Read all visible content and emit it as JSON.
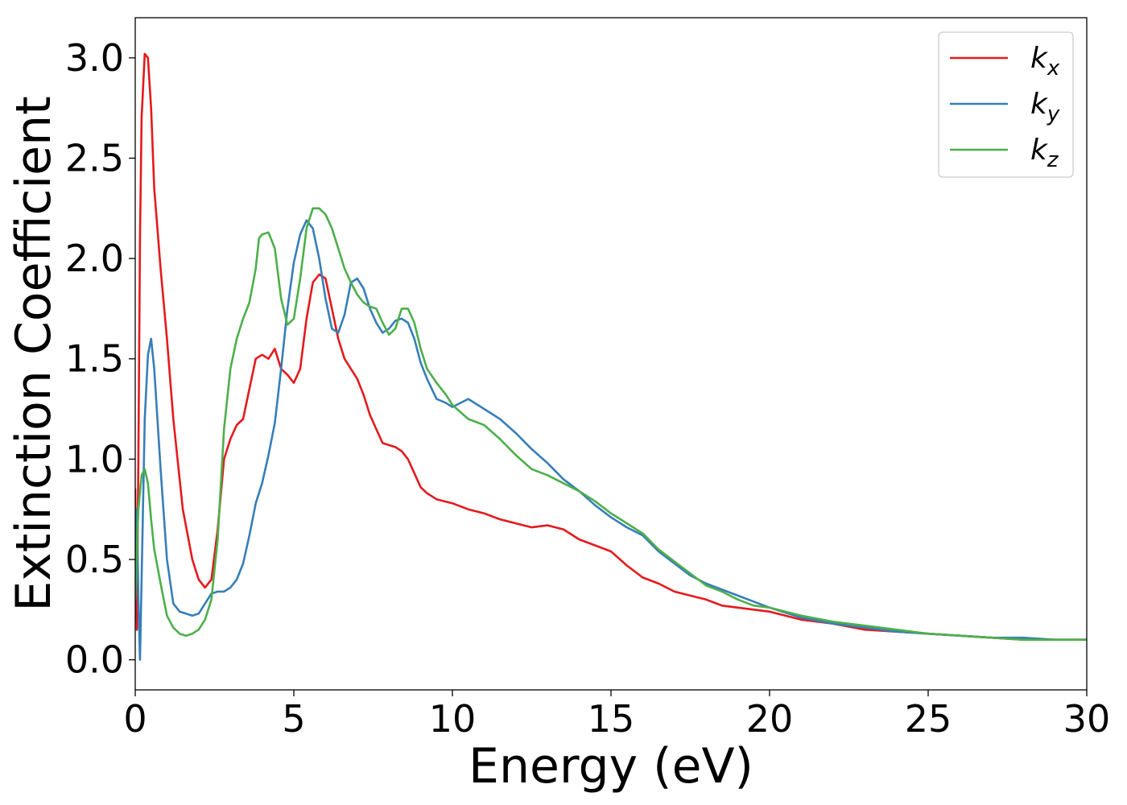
{
  "chart_data": {
    "type": "line",
    "title": "",
    "xlabel": "Energy (eV)",
    "ylabel": "Extinction Coefficient",
    "xlim": [
      0,
      30
    ],
    "ylim": [
      -0.15,
      3.2
    ],
    "xticks": [
      0,
      5,
      10,
      15,
      20,
      25,
      30
    ],
    "yticks": [
      0.0,
      0.5,
      1.0,
      1.5,
      2.0,
      2.5,
      3.0
    ],
    "xtick_labels": [
      "0",
      "5",
      "10",
      "15",
      "20",
      "25",
      "30"
    ],
    "ytick_labels": [
      "0.0",
      "0.5",
      "1.0",
      "1.5",
      "2.0",
      "2.5",
      "3.0"
    ],
    "grid": false,
    "legend_position": "top-right",
    "series": [
      {
        "name": "k",
        "subscript": "x",
        "color": "#e41a1c",
        "x": [
          0.0,
          0.05,
          0.1,
          0.15,
          0.2,
          0.3,
          0.4,
          0.5,
          0.6,
          0.8,
          1.0,
          1.2,
          1.5,
          1.8,
          2.0,
          2.2,
          2.4,
          2.6,
          2.8,
          3.0,
          3.2,
          3.4,
          3.6,
          3.8,
          4.0,
          4.2,
          4.4,
          4.6,
          4.8,
          5.0,
          5.2,
          5.4,
          5.6,
          5.8,
          6.0,
          6.2,
          6.4,
          6.6,
          6.8,
          7.0,
          7.2,
          7.4,
          7.6,
          7.8,
          8.0,
          8.2,
          8.4,
          8.6,
          8.8,
          9.0,
          9.2,
          9.5,
          10.0,
          10.5,
          11.0,
          11.5,
          12.0,
          12.5,
          13.0,
          13.5,
          14.0,
          14.5,
          15.0,
          15.5,
          16.0,
          16.5,
          17.0,
          17.5,
          18.0,
          18.5,
          19.0,
          19.5,
          20.0,
          21.0,
          22.0,
          23.0,
          24.0,
          25.0,
          26.0,
          27.0,
          28.0,
          29.0,
          30.0
        ],
        "values": [
          0.85,
          0.15,
          1.0,
          2.1,
          2.7,
          3.02,
          3.0,
          2.75,
          2.35,
          1.95,
          1.6,
          1.2,
          0.75,
          0.5,
          0.4,
          0.36,
          0.4,
          0.65,
          1.0,
          1.1,
          1.17,
          1.2,
          1.35,
          1.5,
          1.52,
          1.5,
          1.55,
          1.45,
          1.42,
          1.38,
          1.45,
          1.7,
          1.88,
          1.92,
          1.9,
          1.75,
          1.6,
          1.5,
          1.45,
          1.4,
          1.32,
          1.22,
          1.15,
          1.08,
          1.07,
          1.06,
          1.04,
          1.0,
          0.93,
          0.86,
          0.83,
          0.8,
          0.78,
          0.75,
          0.73,
          0.7,
          0.68,
          0.66,
          0.67,
          0.65,
          0.6,
          0.57,
          0.54,
          0.47,
          0.41,
          0.38,
          0.34,
          0.32,
          0.3,
          0.27,
          0.26,
          0.25,
          0.24,
          0.2,
          0.18,
          0.15,
          0.14,
          0.13,
          0.12,
          0.11,
          0.1,
          0.1,
          0.1
        ]
      },
      {
        "name": "k",
        "subscript": "y",
        "color": "#377eb8",
        "x": [
          0.0,
          0.05,
          0.1,
          0.15,
          0.2,
          0.3,
          0.4,
          0.5,
          0.6,
          0.8,
          1.0,
          1.2,
          1.4,
          1.6,
          1.8,
          2.0,
          2.2,
          2.4,
          2.6,
          2.8,
          3.0,
          3.2,
          3.4,
          3.6,
          3.8,
          4.0,
          4.2,
          4.4,
          4.6,
          4.8,
          5.0,
          5.2,
          5.4,
          5.6,
          5.8,
          6.0,
          6.2,
          6.4,
          6.6,
          6.8,
          7.0,
          7.2,
          7.4,
          7.6,
          7.8,
          8.0,
          8.2,
          8.4,
          8.6,
          8.8,
          9.0,
          9.2,
          9.5,
          9.8,
          10.0,
          10.5,
          11.0,
          11.5,
          12.0,
          12.5,
          13.0,
          13.5,
          14.0,
          14.5,
          15.0,
          15.5,
          16.0,
          16.5,
          17.0,
          17.5,
          18.0,
          18.5,
          19.0,
          19.5,
          20.0,
          21.0,
          22.0,
          23.0,
          24.0,
          25.0,
          26.0,
          27.0,
          28.0,
          29.0,
          30.0
        ],
        "values": [
          0.5,
          0.75,
          0.3,
          0.0,
          0.4,
          1.2,
          1.52,
          1.6,
          1.45,
          0.95,
          0.5,
          0.28,
          0.24,
          0.23,
          0.22,
          0.23,
          0.28,
          0.33,
          0.34,
          0.34,
          0.36,
          0.4,
          0.48,
          0.62,
          0.78,
          0.88,
          1.02,
          1.18,
          1.45,
          1.75,
          1.98,
          2.12,
          2.19,
          2.15,
          2.0,
          1.8,
          1.65,
          1.63,
          1.72,
          1.88,
          1.9,
          1.85,
          1.75,
          1.68,
          1.63,
          1.65,
          1.69,
          1.7,
          1.68,
          1.6,
          1.48,
          1.4,
          1.3,
          1.28,
          1.26,
          1.3,
          1.25,
          1.2,
          1.13,
          1.05,
          0.98,
          0.9,
          0.84,
          0.77,
          0.71,
          0.66,
          0.62,
          0.54,
          0.48,
          0.42,
          0.38,
          0.35,
          0.32,
          0.29,
          0.26,
          0.21,
          0.18,
          0.16,
          0.14,
          0.13,
          0.12,
          0.11,
          0.11,
          0.1,
          0.1
        ]
      },
      {
        "name": "k",
        "subscript": "z",
        "color": "#4daf4a",
        "x": [
          0.0,
          0.05,
          0.1,
          0.2,
          0.3,
          0.4,
          0.5,
          0.6,
          0.8,
          1.0,
          1.2,
          1.4,
          1.6,
          1.8,
          2.0,
          2.2,
          2.4,
          2.6,
          2.8,
          3.0,
          3.2,
          3.4,
          3.6,
          3.8,
          3.9,
          4.0,
          4.2,
          4.4,
          4.6,
          4.8,
          5.0,
          5.2,
          5.4,
          5.6,
          5.8,
          6.0,
          6.2,
          6.4,
          6.6,
          6.8,
          7.0,
          7.2,
          7.4,
          7.6,
          7.8,
          8.0,
          8.2,
          8.4,
          8.6,
          8.8,
          9.0,
          9.2,
          9.5,
          9.8,
          10.0,
          10.5,
          11.0,
          11.5,
          12.0,
          12.5,
          13.0,
          13.5,
          14.0,
          14.5,
          15.0,
          15.5,
          16.0,
          16.5,
          17.0,
          17.5,
          18.0,
          18.5,
          19.0,
          19.5,
          20.0,
          21.0,
          22.0,
          23.0,
          24.0,
          25.0,
          26.0,
          27.0,
          28.0,
          29.0,
          30.0
        ],
        "values": [
          0.3,
          0.55,
          0.75,
          0.92,
          0.95,
          0.88,
          0.7,
          0.55,
          0.38,
          0.22,
          0.16,
          0.13,
          0.12,
          0.13,
          0.15,
          0.2,
          0.3,
          0.6,
          1.15,
          1.45,
          1.6,
          1.7,
          1.78,
          1.95,
          2.1,
          2.12,
          2.13,
          2.05,
          1.8,
          1.67,
          1.7,
          1.9,
          2.15,
          2.25,
          2.25,
          2.22,
          2.15,
          2.05,
          1.95,
          1.88,
          1.82,
          1.78,
          1.76,
          1.75,
          1.68,
          1.62,
          1.65,
          1.75,
          1.75,
          1.68,
          1.55,
          1.45,
          1.38,
          1.32,
          1.27,
          1.2,
          1.17,
          1.1,
          1.02,
          0.95,
          0.92,
          0.88,
          0.84,
          0.79,
          0.73,
          0.68,
          0.63,
          0.55,
          0.49,
          0.43,
          0.37,
          0.34,
          0.3,
          0.27,
          0.26,
          0.22,
          0.19,
          0.17,
          0.15,
          0.13,
          0.12,
          0.11,
          0.1,
          0.1,
          0.1
        ]
      }
    ]
  }
}
